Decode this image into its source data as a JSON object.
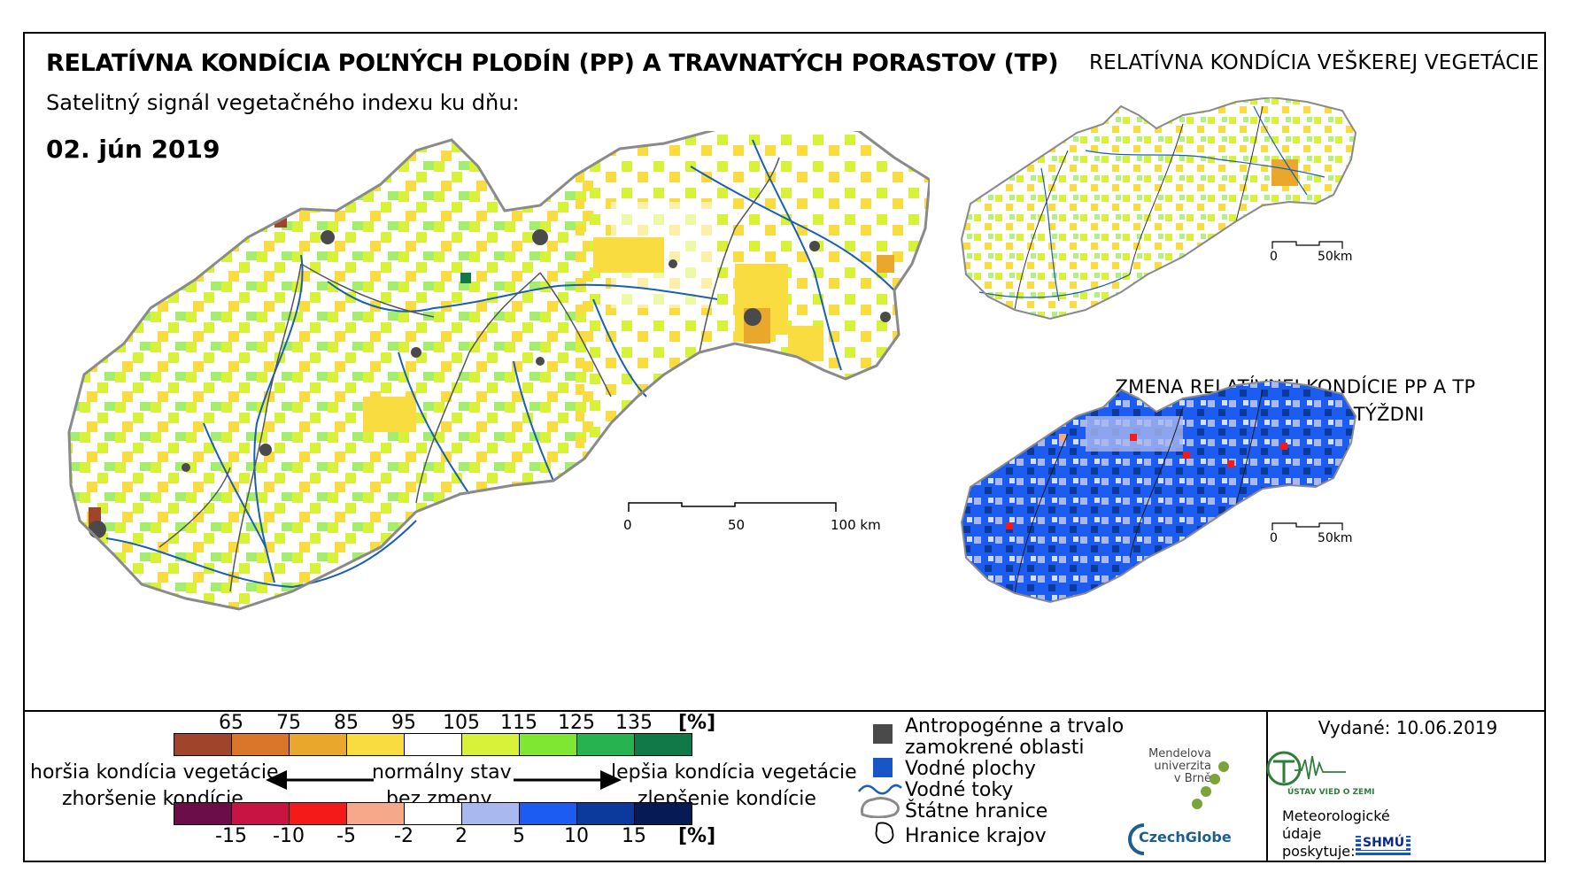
{
  "header": {
    "title": "RELATÍVNA KONDÍCIA POĽNÝCH PLODÍN (PP) A TRAVNATÝCH PORASTOV (TP)",
    "right_title": "RELATÍVNA KONDÍCIA VEŠKEREJ VEGETÁCIE",
    "subtitle": "Satelitný signál vegetačného indexu ku dňu:",
    "date": "02. jún 2019"
  },
  "inset_change": {
    "title_line1": "ZMENA RELATÍVNEJ KONDÍCIE PP A TP",
    "title_line2": "OPROTI MINULÉMU TÝŽDNI"
  },
  "scalebars": {
    "main": {
      "t0": "0",
      "t1": "50",
      "t2": "100 km"
    },
    "inset_top": {
      "t0": "0",
      "t1": "50km"
    },
    "inset_bottom": {
      "t0": "0",
      "t1": "50km"
    }
  },
  "condition_scale": {
    "ticks": [
      "65",
      "75",
      "85",
      "95",
      "105",
      "115",
      "125",
      "135"
    ],
    "unit": "[%]",
    "colors": [
      "#a0442c",
      "#d9762a",
      "#e9a82b",
      "#f8dc40",
      "#ffffff",
      "#d8f23a",
      "#7fe632",
      "#27b34f",
      "#0f7a47"
    ]
  },
  "change_scale": {
    "ticks": [
      "-15",
      "-10",
      "-5",
      "-2",
      "2",
      "5",
      "10",
      "15"
    ],
    "unit": "[%]",
    "colors": [
      "#6b0d46",
      "#c81443",
      "#f51a1a",
      "#f5a98a",
      "#ffffff",
      "#a9b8ee",
      "#1d5cf0",
      "#0c3a9c",
      "#061a55"
    ]
  },
  "arrows": {
    "left_top": "horšia kondícia vegetácie",
    "left_bottom": "zhoršenie kondície",
    "mid_top": "normálny stav",
    "mid_bottom": "bez zmeny",
    "right_top": "lepšia kondícia vegetácie",
    "right_bottom": "zlepšenie kondície"
  },
  "legend": {
    "items": [
      {
        "label_a": "Antropogénne a trvalo",
        "label_b": "zamokrené oblasti"
      },
      {
        "label": "Vodné plochy"
      },
      {
        "label": "Vodné toky"
      },
      {
        "label": "Štátne hranice"
      },
      {
        "label": "Hranice krajov"
      }
    ]
  },
  "issue": {
    "issued": "Vydané: 10.06.2019",
    "mendel_1": "Mendelova",
    "mendel_2": "univerzita",
    "mendel_3": "v Brně",
    "czechglobe": "CzechGlobe",
    "uvoz": "ÚSTAV VIED O ZEMI",
    "meteo_1": "Meteorologické",
    "meteo_2": "údaje",
    "meteo_3": "poskytuje:",
    "shmu": "SHMÚ"
  },
  "colors": {
    "state_border": "#8a8a8a",
    "river": "#1a5fb4",
    "urban": "#4a4a4a"
  }
}
